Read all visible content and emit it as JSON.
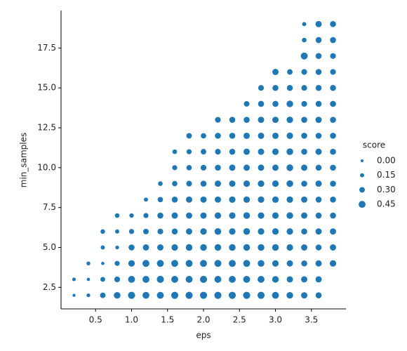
{
  "chart_data": {
    "type": "scatter",
    "x_label": "eps",
    "y_label": "min_samples",
    "color": "#1f77b4",
    "xlim": [
      0.02,
      3.98
    ],
    "ylim": [
      1.15,
      19.85
    ],
    "xticks": [
      0.5,
      {
        "value": 1.0,
        "label": "1.0"
      },
      1.5,
      {
        "value": 2.0,
        "label": "2.0"
      },
      2.5,
      {
        "value": 3.0,
        "label": "3.0"
      },
      3.5
    ],
    "yticks": [
      2.5,
      {
        "value": 5.0,
        "label": "5.0"
      },
      7.5,
      {
        "value": 10.0,
        "label": "10.0"
      },
      12.5,
      {
        "value": 15.0,
        "label": "15.0"
      },
      17.5
    ],
    "legend": {
      "title": "score",
      "position": "right",
      "sizes": [
        {
          "value": 0,
          "label": "0.00"
        },
        {
          "value": 0.15,
          "label": "0.15"
        },
        {
          "value": 0.3,
          "label": "0.30"
        },
        {
          "value": 0.45,
          "label": "0.45"
        }
      ]
    },
    "x": [
      0.2,
      0.2,
      0.4,
      0.4,
      0.4,
      0.6,
      0.6,
      0.6,
      0.6,
      0.6,
      0.8,
      0.8,
      0.8,
      0.8,
      0.8,
      0.8,
      1.0,
      1.0,
      1.0,
      1.0,
      1.0,
      1.0,
      1.2,
      1.2,
      1.2,
      1.2,
      1.2,
      1.2,
      1.2,
      1.4,
      1.4,
      1.4,
      1.4,
      1.4,
      1.4,
      1.4,
      1.4,
      1.6,
      1.6,
      1.6,
      1.6,
      1.6,
      1.6,
      1.6,
      1.6,
      1.6,
      1.6,
      1.8,
      1.8,
      1.8,
      1.8,
      1.8,
      1.8,
      1.8,
      1.8,
      1.8,
      1.8,
      1.8,
      2.0,
      2.0,
      2.0,
      2.0,
      2.0,
      2.0,
      2.0,
      2.0,
      2.0,
      2.0,
      2.0,
      2.2,
      2.2,
      2.2,
      2.2,
      2.2,
      2.2,
      2.2,
      2.2,
      2.2,
      2.2,
      2.2,
      2.2,
      2.4,
      2.4,
      2.4,
      2.4,
      2.4,
      2.4,
      2.4,
      2.4,
      2.4,
      2.4,
      2.4,
      2.4,
      2.6,
      2.6,
      2.6,
      2.6,
      2.6,
      2.6,
      2.6,
      2.6,
      2.6,
      2.6,
      2.6,
      2.6,
      2.6,
      2.8,
      2.8,
      2.8,
      2.8,
      2.8,
      2.8,
      2.8,
      2.8,
      2.8,
      2.8,
      2.8,
      2.8,
      2.8,
      2.8,
      3.0,
      3.0,
      3.0,
      3.0,
      3.0,
      3.0,
      3.0,
      3.0,
      3.0,
      3.0,
      3.0,
      3.0,
      3.0,
      3.0,
      3.0,
      3.2,
      3.2,
      3.2,
      3.2,
      3.2,
      3.2,
      3.2,
      3.2,
      3.2,
      3.2,
      3.2,
      3.2,
      3.2,
      3.2,
      3.2,
      3.4,
      3.4,
      3.4,
      3.4,
      3.4,
      3.4,
      3.4,
      3.4,
      3.4,
      3.4,
      3.4,
      3.4,
      3.4,
      3.4,
      3.4,
      3.4,
      3.4,
      3.4,
      3.6,
      3.6,
      3.6,
      3.6,
      3.6,
      3.6,
      3.6,
      3.6,
      3.6,
      3.6,
      3.6,
      3.6,
      3.6,
      3.6,
      3.6,
      3.6,
      3.6,
      3.6,
      3.8,
      3.8,
      3.8,
      3.8,
      3.8,
      3.8,
      3.8,
      3.8,
      3.8,
      3.8,
      3.8,
      3.8,
      3.8,
      3.8,
      3.8,
      3.8
    ],
    "values": [
      2,
      3,
      2,
      3,
      4,
      2,
      3,
      4,
      5,
      6,
      2,
      3,
      4,
      5,
      6,
      7,
      2,
      3,
      4,
      5,
      6,
      7,
      2,
      3,
      4,
      5,
      6,
      7,
      8,
      2,
      3,
      4,
      5,
      6,
      7,
      8,
      9,
      2,
      3,
      4,
      5,
      6,
      7,
      8,
      9,
      10,
      11,
      2,
      3,
      4,
      5,
      6,
      7,
      8,
      9,
      10,
      11,
      12,
      2,
      3,
      4,
      5,
      6,
      7,
      8,
      9,
      10,
      11,
      12,
      2,
      3,
      4,
      5,
      6,
      7,
      8,
      9,
      10,
      11,
      12,
      13,
      2,
      3,
      4,
      5,
      6,
      7,
      8,
      9,
      10,
      11,
      12,
      13,
      2,
      3,
      4,
      5,
      6,
      7,
      8,
      9,
      10,
      11,
      12,
      13,
      14,
      2,
      3,
      4,
      5,
      6,
      7,
      8,
      9,
      10,
      11,
      12,
      13,
      14,
      15,
      2,
      3,
      4,
      5,
      6,
      7,
      8,
      9,
      10,
      11,
      12,
      13,
      14,
      15,
      16,
      2,
      3,
      4,
      5,
      6,
      7,
      8,
      9,
      10,
      11,
      12,
      13,
      14,
      15,
      16,
      2,
      3,
      4,
      5,
      6,
      7,
      8,
      9,
      10,
      11,
      12,
      13,
      14,
      15,
      16,
      17,
      18,
      19,
      2,
      3,
      4,
      5,
      6,
      7,
      8,
      9,
      10,
      11,
      12,
      13,
      14,
      15,
      16,
      17,
      18,
      19,
      4,
      5,
      6,
      7,
      8,
      9,
      10,
      11,
      12,
      13,
      14,
      15,
      16,
      17,
      18,
      19
    ],
    "sizes": [
      0.02,
      0.08,
      0.1,
      0.05,
      0.12,
      0.3,
      0.22,
      0.05,
      0.15,
      0.2,
      0.42,
      0.32,
      0.25,
      0.1,
      0.15,
      0.2,
      0.47,
      0.45,
      0.4,
      0.35,
      0.25,
      0.18,
      0.45,
      0.45,
      0.45,
      0.38,
      0.3,
      0.25,
      0.15,
      0.45,
      0.47,
      0.45,
      0.38,
      0.32,
      0.35,
      0.28,
      0.2,
      0.47,
      0.45,
      0.45,
      0.4,
      0.35,
      0.38,
      0.35,
      0.28,
      0.25,
      0.2,
      0.47,
      0.45,
      0.45,
      0.42,
      0.38,
      0.38,
      0.38,
      0.32,
      0.28,
      0.25,
      0.3,
      0.47,
      0.47,
      0.45,
      0.42,
      0.4,
      0.38,
      0.38,
      0.35,
      0.32,
      0.3,
      0.28,
      0.47,
      0.45,
      0.45,
      0.42,
      0.42,
      0.4,
      0.38,
      0.38,
      0.35,
      0.32,
      0.35,
      0.32,
      0.47,
      0.45,
      0.45,
      0.42,
      0.4,
      0.4,
      0.4,
      0.38,
      0.38,
      0.35,
      0.35,
      0.35,
      0.47,
      0.45,
      0.45,
      0.42,
      0.42,
      0.42,
      0.4,
      0.4,
      0.38,
      0.38,
      0.38,
      0.35,
      0.3,
      0.47,
      0.45,
      0.42,
      0.42,
      0.4,
      0.4,
      0.4,
      0.4,
      0.38,
      0.38,
      0.38,
      0.38,
      0.35,
      0.32,
      0.45,
      0.42,
      0.4,
      0.42,
      0.4,
      0.4,
      0.4,
      0.4,
      0.38,
      0.4,
      0.38,
      0.38,
      0.35,
      0.35,
      0.38,
      0.42,
      0.38,
      0.38,
      0.4,
      0.4,
      0.42,
      0.4,
      0.42,
      0.42,
      0.42,
      0.4,
      0.4,
      0.42,
      0.35,
      0.3,
      0.38,
      0.38,
      0.35,
      0.38,
      0.35,
      0.38,
      0.38,
      0.35,
      0.38,
      0.35,
      0.35,
      0.35,
      0.32,
      0.32,
      0.32,
      0.45,
      0.2,
      0.15,
      0.35,
      0.38,
      0.38,
      0.35,
      0.38,
      0.35,
      0.35,
      0.38,
      0.35,
      0.38,
      0.35,
      0.38,
      0.35,
      0.35,
      0.35,
      0.35,
      0.35,
      0.38,
      0.4,
      0.38,
      0.38,
      0.35,
      0.35,
      0.35,
      0.35,
      0.35,
      0.35,
      0.35,
      0.35,
      0.35,
      0.32,
      0.32,
      0.35,
      0.35
    ]
  }
}
